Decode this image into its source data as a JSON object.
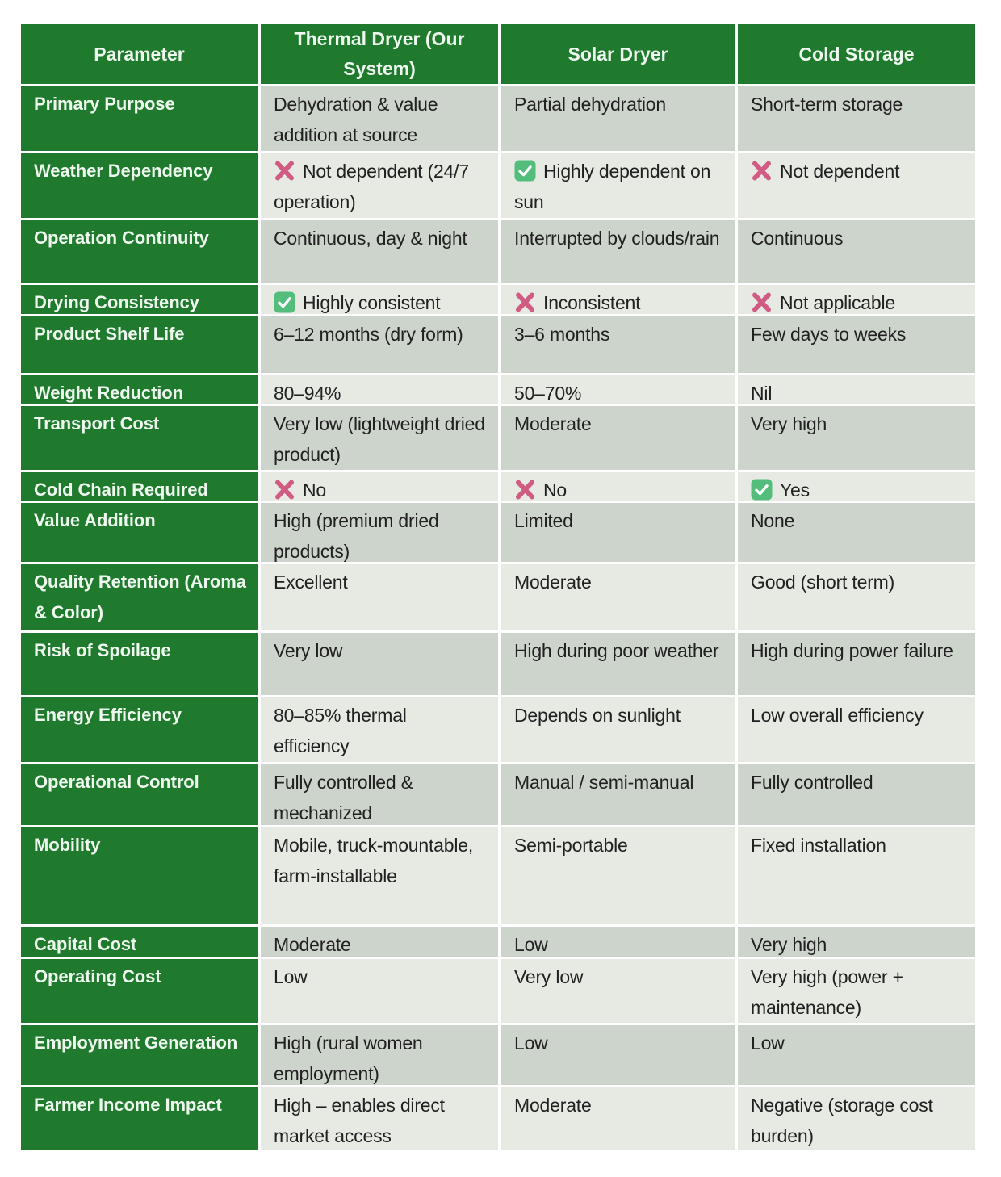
{
  "colors": {
    "header_green": "#1f7a2e",
    "row_dark": "#cdd4cb",
    "row_light": "#e6eae3",
    "header_text": "#eef8ef",
    "body_text": "#212121",
    "cross_pink": "#d15c83",
    "check_green": "#53bd7c",
    "check_mark_white": "#ffffff"
  },
  "table": {
    "columns": [
      "Parameter",
      "Thermal Dryer (Our System)",
      "Solar Dryer",
      "Cold Storage"
    ],
    "rows": [
      {
        "parameter": "Primary Purpose",
        "cells": [
          {
            "text": "Dehydration & value addition at source"
          },
          {
            "text": "Partial dehydration"
          },
          {
            "text": "Short-term storage"
          }
        ]
      },
      {
        "parameter": "Weather Dependency",
        "cells": [
          {
            "icon": "cross",
            "text": "Not dependent (24/7 operation)"
          },
          {
            "icon": "check",
            "text": "Highly dependent on sun"
          },
          {
            "icon": "cross",
            "text": "Not dependent"
          }
        ]
      },
      {
        "parameter": "Operation Continuity",
        "cells": [
          {
            "text": "Continuous, day & night"
          },
          {
            "text": "Interrupted by clouds/rain"
          },
          {
            "text": "Continuous"
          }
        ]
      },
      {
        "parameter": "Drying Consistency",
        "cells": [
          {
            "icon": "check",
            "text": "Highly consistent"
          },
          {
            "icon": "cross",
            "text": "Inconsistent"
          },
          {
            "icon": "cross",
            "text": "Not applicable"
          }
        ]
      },
      {
        "parameter": "Product Shelf Life",
        "cells": [
          {
            "text": "6–12 months (dry form)"
          },
          {
            "text": "3–6 months"
          },
          {
            "text": "Few days to weeks"
          }
        ]
      },
      {
        "parameter": "Weight Reduction",
        "cells": [
          {
            "text": "80–94%"
          },
          {
            "text": "50–70%"
          },
          {
            "text": "Nil"
          }
        ]
      },
      {
        "parameter": "Transport Cost",
        "cells": [
          {
            "text": "Very low (lightweight dried product)"
          },
          {
            "text": "Moderate"
          },
          {
            "text": "Very high"
          }
        ]
      },
      {
        "parameter": "Cold Chain Required",
        "cells": [
          {
            "icon": "cross",
            "text": "No"
          },
          {
            "icon": "cross",
            "text": "No"
          },
          {
            "icon": "check",
            "text": "Yes"
          }
        ]
      },
      {
        "parameter": "Value Addition",
        "cells": [
          {
            "text": "High (premium dried products)"
          },
          {
            "text": "Limited"
          },
          {
            "text": "None"
          }
        ]
      },
      {
        "parameter": "Quality Retention (Aroma & Color)",
        "cells": [
          {
            "text": "Excellent"
          },
          {
            "text": "Moderate"
          },
          {
            "text": "Good (short term)"
          }
        ]
      },
      {
        "parameter": "Risk of Spoilage",
        "cells": [
          {
            "text": "Very low"
          },
          {
            "text": "High during poor weather"
          },
          {
            "text": "High during power failure"
          }
        ]
      },
      {
        "parameter": "Energy Efficiency",
        "cells": [
          {
            "text": "80–85% thermal efficiency"
          },
          {
            "text": "Depends on sunlight"
          },
          {
            "text": "Low overall efficiency"
          }
        ]
      },
      {
        "parameter": "Operational Control",
        "cells": [
          {
            "text": "Fully controlled & mechanized"
          },
          {
            "text": "Manual / semi-manual"
          },
          {
            "text": "Fully controlled"
          }
        ]
      },
      {
        "parameter": "Mobility",
        "cells": [
          {
            "text": "Mobile, truck-mountable, farm-installable"
          },
          {
            "text": "Semi-portable"
          },
          {
            "text": "Fixed installation"
          }
        ]
      },
      {
        "parameter": "Capital Cost",
        "cells": [
          {
            "text": "Moderate"
          },
          {
            "text": "Low"
          },
          {
            "text": "Very high"
          }
        ]
      },
      {
        "parameter": "Operating Cost",
        "cells": [
          {
            "text": "Low"
          },
          {
            "text": "Very low"
          },
          {
            "text": "Very high (power + maintenance)"
          }
        ]
      },
      {
        "parameter": "Employment Generation",
        "cells": [
          {
            "text": "High (rural women employment)"
          },
          {
            "text": "Low"
          },
          {
            "text": "Low"
          }
        ]
      },
      {
        "parameter": "Farmer Income Impact",
        "cells": [
          {
            "text": "High – enables direct market access"
          },
          {
            "text": "Moderate"
          },
          {
            "text": "Negative (storage cost burden)"
          }
        ]
      }
    ]
  }
}
